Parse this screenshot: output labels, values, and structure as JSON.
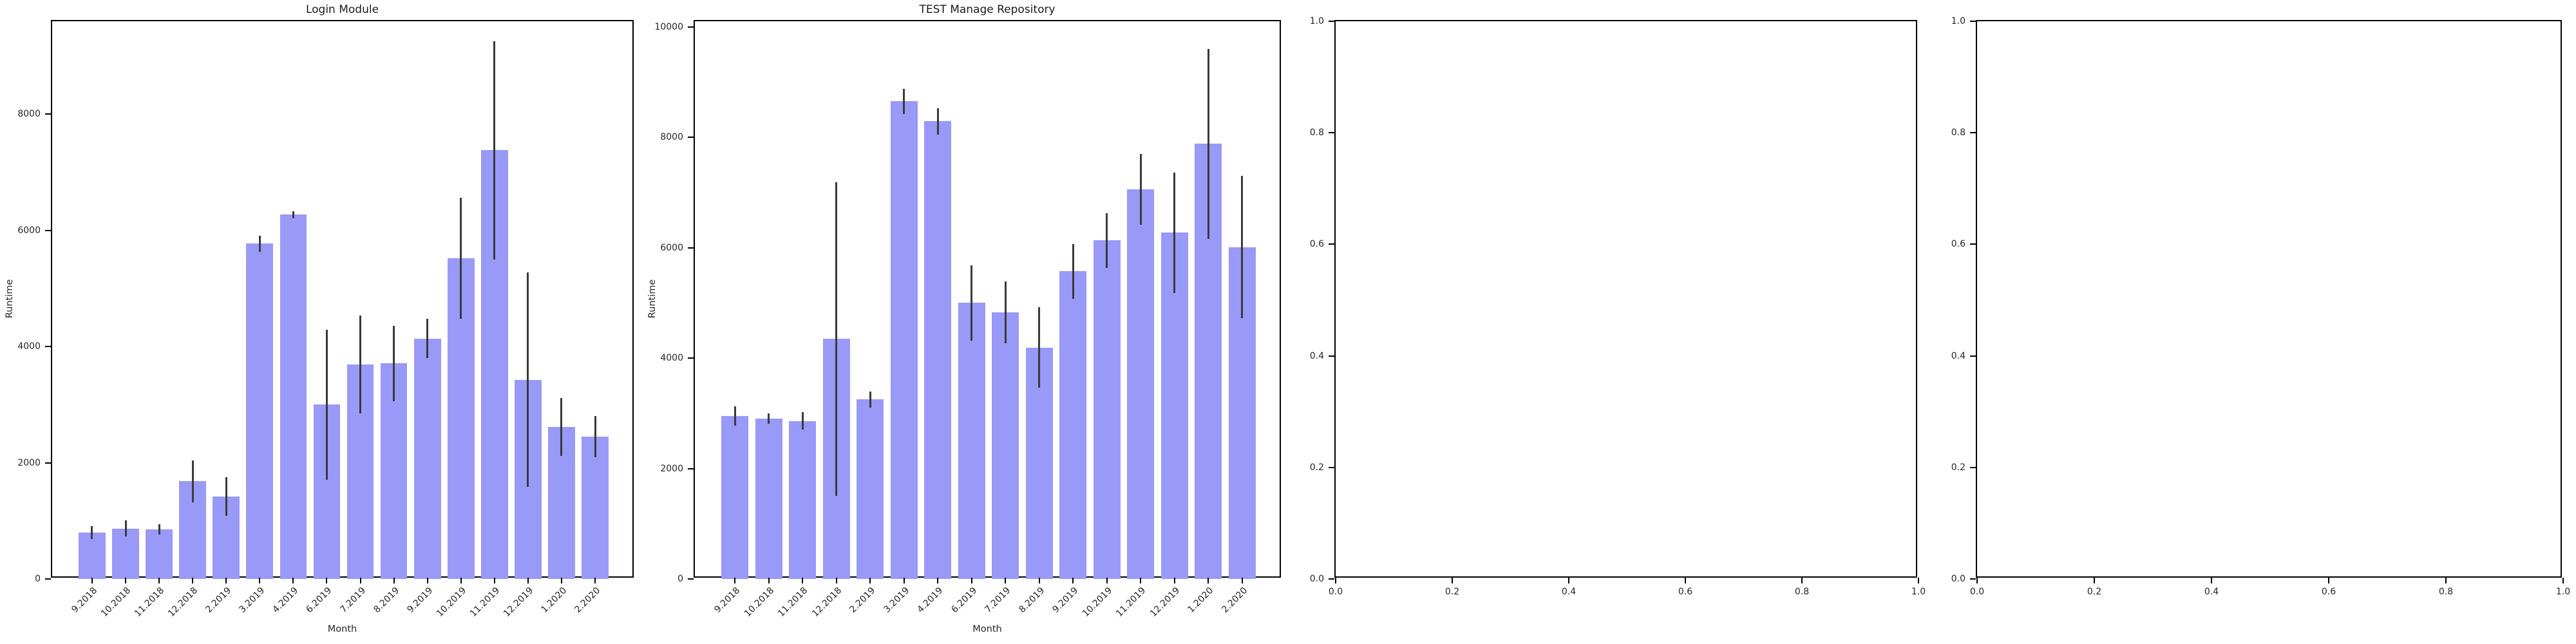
{
  "figure": {
    "background": "#ffffff"
  },
  "colors": {
    "bar_fill": "#9999f7",
    "error_bar": "#3a3a3a",
    "axis": "#000000",
    "text": "#262626"
  },
  "chart_data": [
    {
      "type": "bar",
      "title": "Login Module",
      "xlabel": "Month",
      "ylabel": "Runtime",
      "categories": [
        "9.2018",
        "10.2018",
        "11.2018",
        "12.2018",
        "2.2019",
        "3.2019",
        "4.2019",
        "6.2019",
        "7.2019",
        "8.2019",
        "9.2019",
        "10.2019",
        "11.2019",
        "12.2019",
        "1.2020",
        "2.2020"
      ],
      "values": [
        800,
        870,
        850,
        1680,
        1420,
        5770,
        6270,
        3000,
        3690,
        3710,
        4140,
        5520,
        7380,
        3430,
        2620,
        2450
      ],
      "errors": [
        110,
        140,
        90,
        360,
        330,
        140,
        60,
        1290,
        840,
        650,
        340,
        1040,
        1880,
        1850,
        500,
        360
      ],
      "ylim": [
        0,
        9600
      ],
      "yticks": [
        0,
        2000,
        4000,
        6000,
        8000
      ],
      "yticklabels": [
        "0",
        "2000",
        "4000",
        "6000",
        "8000"
      ],
      "grid": false,
      "legend": null
    },
    {
      "type": "bar",
      "title": "TEST Manage Repository",
      "xlabel": "Month",
      "ylabel": "Runtime",
      "categories": [
        "9.2018",
        "10.2018",
        "11.2018",
        "12.2018",
        "2.2019",
        "3.2019",
        "4.2019",
        "6.2019",
        "7.2019",
        "8.2019",
        "9.2019",
        "10.2019",
        "11.2019",
        "12.2019",
        "1.2020",
        "2.2020"
      ],
      "values": [
        2950,
        2900,
        2860,
        4350,
        3250,
        8650,
        8290,
        5000,
        4830,
        4190,
        5570,
        6130,
        7060,
        6270,
        7880,
        6010
      ],
      "errors": [
        170,
        95,
        160,
        2840,
        145,
        230,
        240,
        680,
        560,
        730,
        500,
        500,
        640,
        1090,
        1720,
        1290
      ],
      "ylim": [
        0,
        10100
      ],
      "yticks": [
        0,
        2000,
        4000,
        6000,
        8000,
        10000
      ],
      "yticklabels": [
        "0",
        "2000",
        "4000",
        "6000",
        "8000",
        "10000"
      ],
      "grid": false,
      "legend": null
    },
    {
      "type": "empty",
      "title": "",
      "xlabel": "",
      "ylabel": "",
      "xlim": [
        0,
        1
      ],
      "ylim": [
        0,
        1
      ],
      "xticks": [
        0,
        0.2,
        0.4,
        0.6,
        0.8,
        1
      ],
      "xticklabels": [
        "0.0",
        "0.2",
        "0.4",
        "0.6",
        "0.8",
        "1.0"
      ],
      "yticks": [
        0,
        0.2,
        0.4,
        0.6,
        0.8,
        1
      ],
      "yticklabels": [
        "0.0",
        "0.2",
        "0.4",
        "0.6",
        "0.8",
        "1.0"
      ],
      "grid": false,
      "legend": null
    },
    {
      "type": "empty",
      "title": "",
      "xlabel": "",
      "ylabel": "",
      "xlim": [
        0,
        1
      ],
      "ylim": [
        0,
        1
      ],
      "xticks": [
        0,
        0.2,
        0.4,
        0.6,
        0.8,
        1
      ],
      "xticklabels": [
        "0.0",
        "0.2",
        "0.4",
        "0.6",
        "0.8",
        "1.0"
      ],
      "yticks": [
        0,
        0.2,
        0.4,
        0.6,
        0.8,
        1
      ],
      "yticklabels": [
        "0.0",
        "0.2",
        "0.4",
        "0.6",
        "0.8",
        "1.0"
      ],
      "grid": false,
      "legend": null
    }
  ]
}
